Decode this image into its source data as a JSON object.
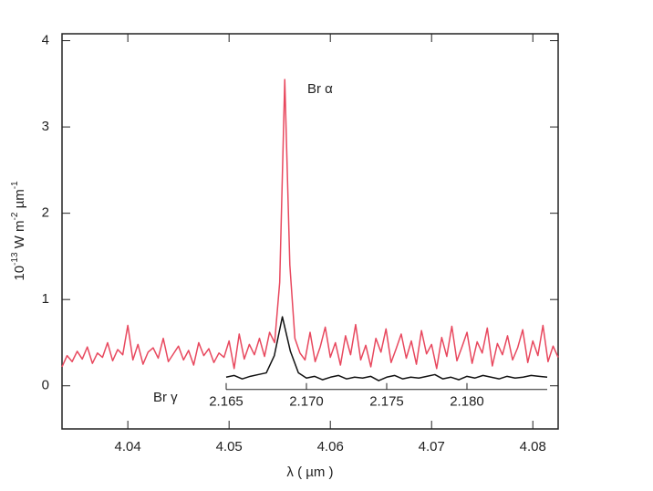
{
  "chart_data": {
    "type": "line",
    "ylabel": [
      "10",
      "-13",
      " W m",
      "-2",
      " µm",
      "-1"
    ],
    "xlabel": "λ ( µm )",
    "annotations": [
      "Br α",
      "Br γ"
    ],
    "xlim": [
      4.0335,
      4.0825
    ],
    "xticks": [
      4.04,
      4.05,
      4.06,
      4.07,
      4.08
    ],
    "x2lim": [
      2.165,
      2.185
    ],
    "x2ticks": [
      2.165,
      {
        "value": 2.17,
        "label": "2.170"
      },
      2.175,
      {
        "value": 2.18,
        "label": "2.180"
      }
    ],
    "ylim": [
      -0.5,
      4.08
    ],
    "yticks": [
      0,
      1,
      2,
      3,
      4
    ],
    "series": [
      {
        "name": "Br α",
        "color": "#e8485e",
        "x": [
          4.0335,
          4.034,
          4.0345,
          4.035,
          4.0355,
          4.036,
          4.0365,
          4.037,
          4.0375,
          4.038,
          4.0385,
          4.039,
          4.0395,
          4.04,
          4.0405,
          4.041,
          4.0415,
          4.042,
          4.0425,
          4.043,
          4.0435,
          4.044,
          4.0445,
          4.045,
          4.0455,
          4.046,
          4.0465,
          4.047,
          4.0475,
          4.048,
          4.0485,
          4.049,
          4.0495,
          4.05,
          4.0505,
          4.051,
          4.0515,
          4.052,
          4.0525,
          4.053,
          4.0535,
          4.054,
          4.0545,
          4.055,
          4.0555,
          4.056,
          4.0565,
          4.057,
          4.0575,
          4.058,
          4.0585,
          4.059,
          4.0595,
          4.06,
          4.0605,
          4.061,
          4.0615,
          4.062,
          4.0625,
          4.063,
          4.0635,
          4.064,
          4.0645,
          4.065,
          4.0655,
          4.066,
          4.0665,
          4.067,
          4.0675,
          4.068,
          4.0685,
          4.069,
          4.0695,
          4.07,
          4.0705,
          4.071,
          4.0715,
          4.072,
          4.0725,
          4.073,
          4.0735,
          4.074,
          4.0745,
          4.075,
          4.0755,
          4.076,
          4.0765,
          4.077,
          4.0775,
          4.078,
          4.0785,
          4.079,
          4.0795,
          4.08,
          4.0805,
          4.081,
          4.0815,
          4.082,
          4.0825
        ],
        "values": [
          0.22,
          0.35,
          0.28,
          0.4,
          0.31,
          0.45,
          0.26,
          0.38,
          0.33,
          0.5,
          0.29,
          0.42,
          0.36,
          0.7,
          0.3,
          0.48,
          0.25,
          0.39,
          0.44,
          0.32,
          0.55,
          0.28,
          0.37,
          0.46,
          0.3,
          0.41,
          0.24,
          0.5,
          0.35,
          0.43,
          0.27,
          0.38,
          0.33,
          0.52,
          0.2,
          0.6,
          0.31,
          0.48,
          0.36,
          0.55,
          0.34,
          0.62,
          0.5,
          1.2,
          3.55,
          1.4,
          0.55,
          0.38,
          0.3,
          0.62,
          0.28,
          0.45,
          0.68,
          0.33,
          0.5,
          0.24,
          0.58,
          0.36,
          0.71,
          0.3,
          0.47,
          0.22,
          0.55,
          0.39,
          0.66,
          0.27,
          0.43,
          0.6,
          0.32,
          0.52,
          0.25,
          0.64,
          0.37,
          0.48,
          0.2,
          0.56,
          0.34,
          0.69,
          0.29,
          0.45,
          0.62,
          0.26,
          0.51,
          0.38,
          0.67,
          0.23,
          0.49,
          0.36,
          0.58,
          0.3,
          0.44,
          0.65,
          0.27,
          0.52,
          0.35,
          0.7,
          0.28,
          0.46,
          0.33
        ]
      },
      {
        "name": "Br γ",
        "color": "#111111",
        "axis": "x2",
        "x": [
          2.165,
          2.1655,
          2.166,
          2.1665,
          2.167,
          2.1675,
          2.168,
          2.1685,
          2.169,
          2.1695,
          2.17,
          2.1705,
          2.171,
          2.1715,
          2.172,
          2.1725,
          2.173,
          2.1735,
          2.174,
          2.1745,
          2.175,
          2.1755,
          2.176,
          2.1765,
          2.177,
          2.1775,
          2.178,
          2.1785,
          2.179,
          2.1795,
          2.18,
          2.1805,
          2.181,
          2.1815,
          2.182,
          2.1825,
          2.183,
          2.1835,
          2.184,
          2.1845,
          2.185
        ],
        "values": [
          0.1,
          0.12,
          0.08,
          0.11,
          0.13,
          0.15,
          0.35,
          0.8,
          0.4,
          0.15,
          0.09,
          0.11,
          0.07,
          0.1,
          0.12,
          0.08,
          0.1,
          0.09,
          0.11,
          0.06,
          0.1,
          0.12,
          0.08,
          0.1,
          0.09,
          0.11,
          0.13,
          0.08,
          0.1,
          0.07,
          0.11,
          0.09,
          0.12,
          0.1,
          0.08,
          0.11,
          0.09,
          0.1,
          0.12,
          0.11,
          0.1
        ]
      }
    ]
  }
}
